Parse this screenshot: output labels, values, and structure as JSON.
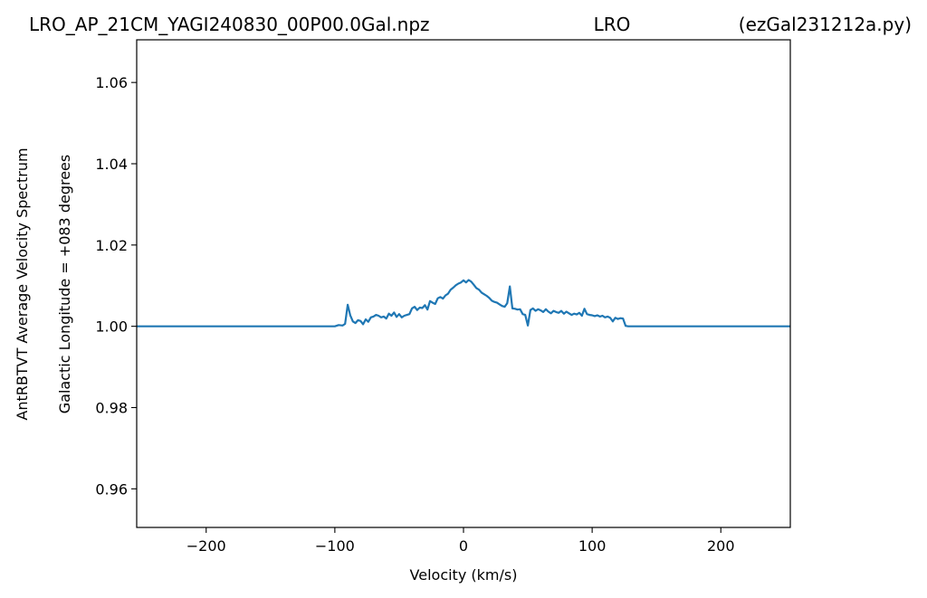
{
  "header": {
    "filename": "LRO_AP_21CM_YAGI240830_00P00.0Gal.npz",
    "observatory": "LRO",
    "script": "(ezGal231212a.py)"
  },
  "chart_data": {
    "type": "line",
    "xlabel": "Velocity (km/s)",
    "ylabel_lines": [
      "AntRBTVT Average Velocity Spectrum",
      "Galactic Longitude = +083 degrees"
    ],
    "xlim": [
      -254,
      254
    ],
    "ylim": [
      0.9505,
      1.0705
    ],
    "x_ticks": [
      -200,
      -100,
      0,
      100,
      200
    ],
    "x_tick_labels": [
      "−200",
      "−100",
      "0",
      "100",
      "200"
    ],
    "y_ticks": [
      0.96,
      0.98,
      1.0,
      1.02,
      1.04,
      1.06
    ],
    "y_tick_labels": [
      "0.96",
      "0.98",
      "1.00",
      "1.02",
      "1.04",
      "1.06"
    ],
    "grid": false,
    "legend": "none",
    "series_color": "#1f77b4",
    "series": [
      {
        "x": [
          -254,
          -100,
          -97,
          -94,
          -92,
          -90,
          -88,
          -86,
          -84,
          -82,
          -80,
          -78,
          -76,
          -74,
          -72,
          -70,
          -68,
          -66,
          -64,
          -62,
          -60,
          -58,
          -56,
          -54,
          -52,
          -50,
          -48,
          -46,
          -44,
          -42,
          -40,
          -38,
          -36,
          -34,
          -32,
          -30,
          -28,
          -26,
          -24,
          -22,
          -20,
          -18,
          -16,
          -14,
          -12,
          -10,
          -8,
          -6,
          -4,
          -2,
          0,
          2,
          4,
          6,
          8,
          10,
          12,
          14,
          16,
          18,
          20,
          22,
          24,
          26,
          28,
          30,
          32,
          34,
          36,
          38,
          40,
          42,
          44,
          46,
          48,
          50,
          52,
          54,
          56,
          58,
          60,
          62,
          64,
          66,
          68,
          70,
          72,
          74,
          76,
          78,
          80,
          82,
          84,
          86,
          88,
          90,
          92,
          94,
          96,
          98,
          100,
          102,
          104,
          106,
          108,
          110,
          112,
          114,
          116,
          118,
          120,
          122,
          124,
          126,
          128,
          130,
          132,
          254
        ],
        "y": [
          1.0,
          1.0,
          1.0003,
          1.0002,
          1.0006,
          1.0053,
          1.0027,
          1.0012,
          1.0008,
          1.0015,
          1.0013,
          1.0005,
          1.0017,
          1.0011,
          1.0022,
          1.0024,
          1.0028,
          1.0026,
          1.0022,
          1.0024,
          1.0019,
          1.0031,
          1.0026,
          1.0034,
          1.0023,
          1.003,
          1.0022,
          1.0026,
          1.0028,
          1.003,
          1.0044,
          1.0048,
          1.004,
          1.0046,
          1.0045,
          1.0052,
          1.0041,
          1.0062,
          1.0058,
          1.0055,
          1.0069,
          1.0072,
          1.0068,
          1.0076,
          1.008,
          1.009,
          1.0095,
          1.0101,
          1.0105,
          1.0108,
          1.0113,
          1.0108,
          1.0114,
          1.011,
          1.0102,
          1.0094,
          1.009,
          1.0083,
          1.0079,
          1.0075,
          1.007,
          1.0063,
          1.006,
          1.0058,
          1.0054,
          1.005,
          1.0048,
          1.0057,
          1.0098,
          1.0044,
          1.0043,
          1.0041,
          1.0042,
          1.003,
          1.0028,
          1.0002,
          1.004,
          1.0044,
          1.0038,
          1.0042,
          1.0039,
          1.0035,
          1.0042,
          1.0036,
          1.0032,
          1.0038,
          1.0035,
          1.0033,
          1.0038,
          1.0031,
          1.0036,
          1.0032,
          1.0028,
          1.0031,
          1.0029,
          1.0033,
          1.0026,
          1.0043,
          1.003,
          1.0028,
          1.0027,
          1.0025,
          1.0027,
          1.0024,
          1.0026,
          1.0022,
          1.0024,
          1.0021,
          1.0012,
          1.0021,
          1.0018,
          1.002,
          1.0019,
          1.0001,
          1.0,
          1.0,
          1.0,
          1.0
        ]
      }
    ]
  }
}
